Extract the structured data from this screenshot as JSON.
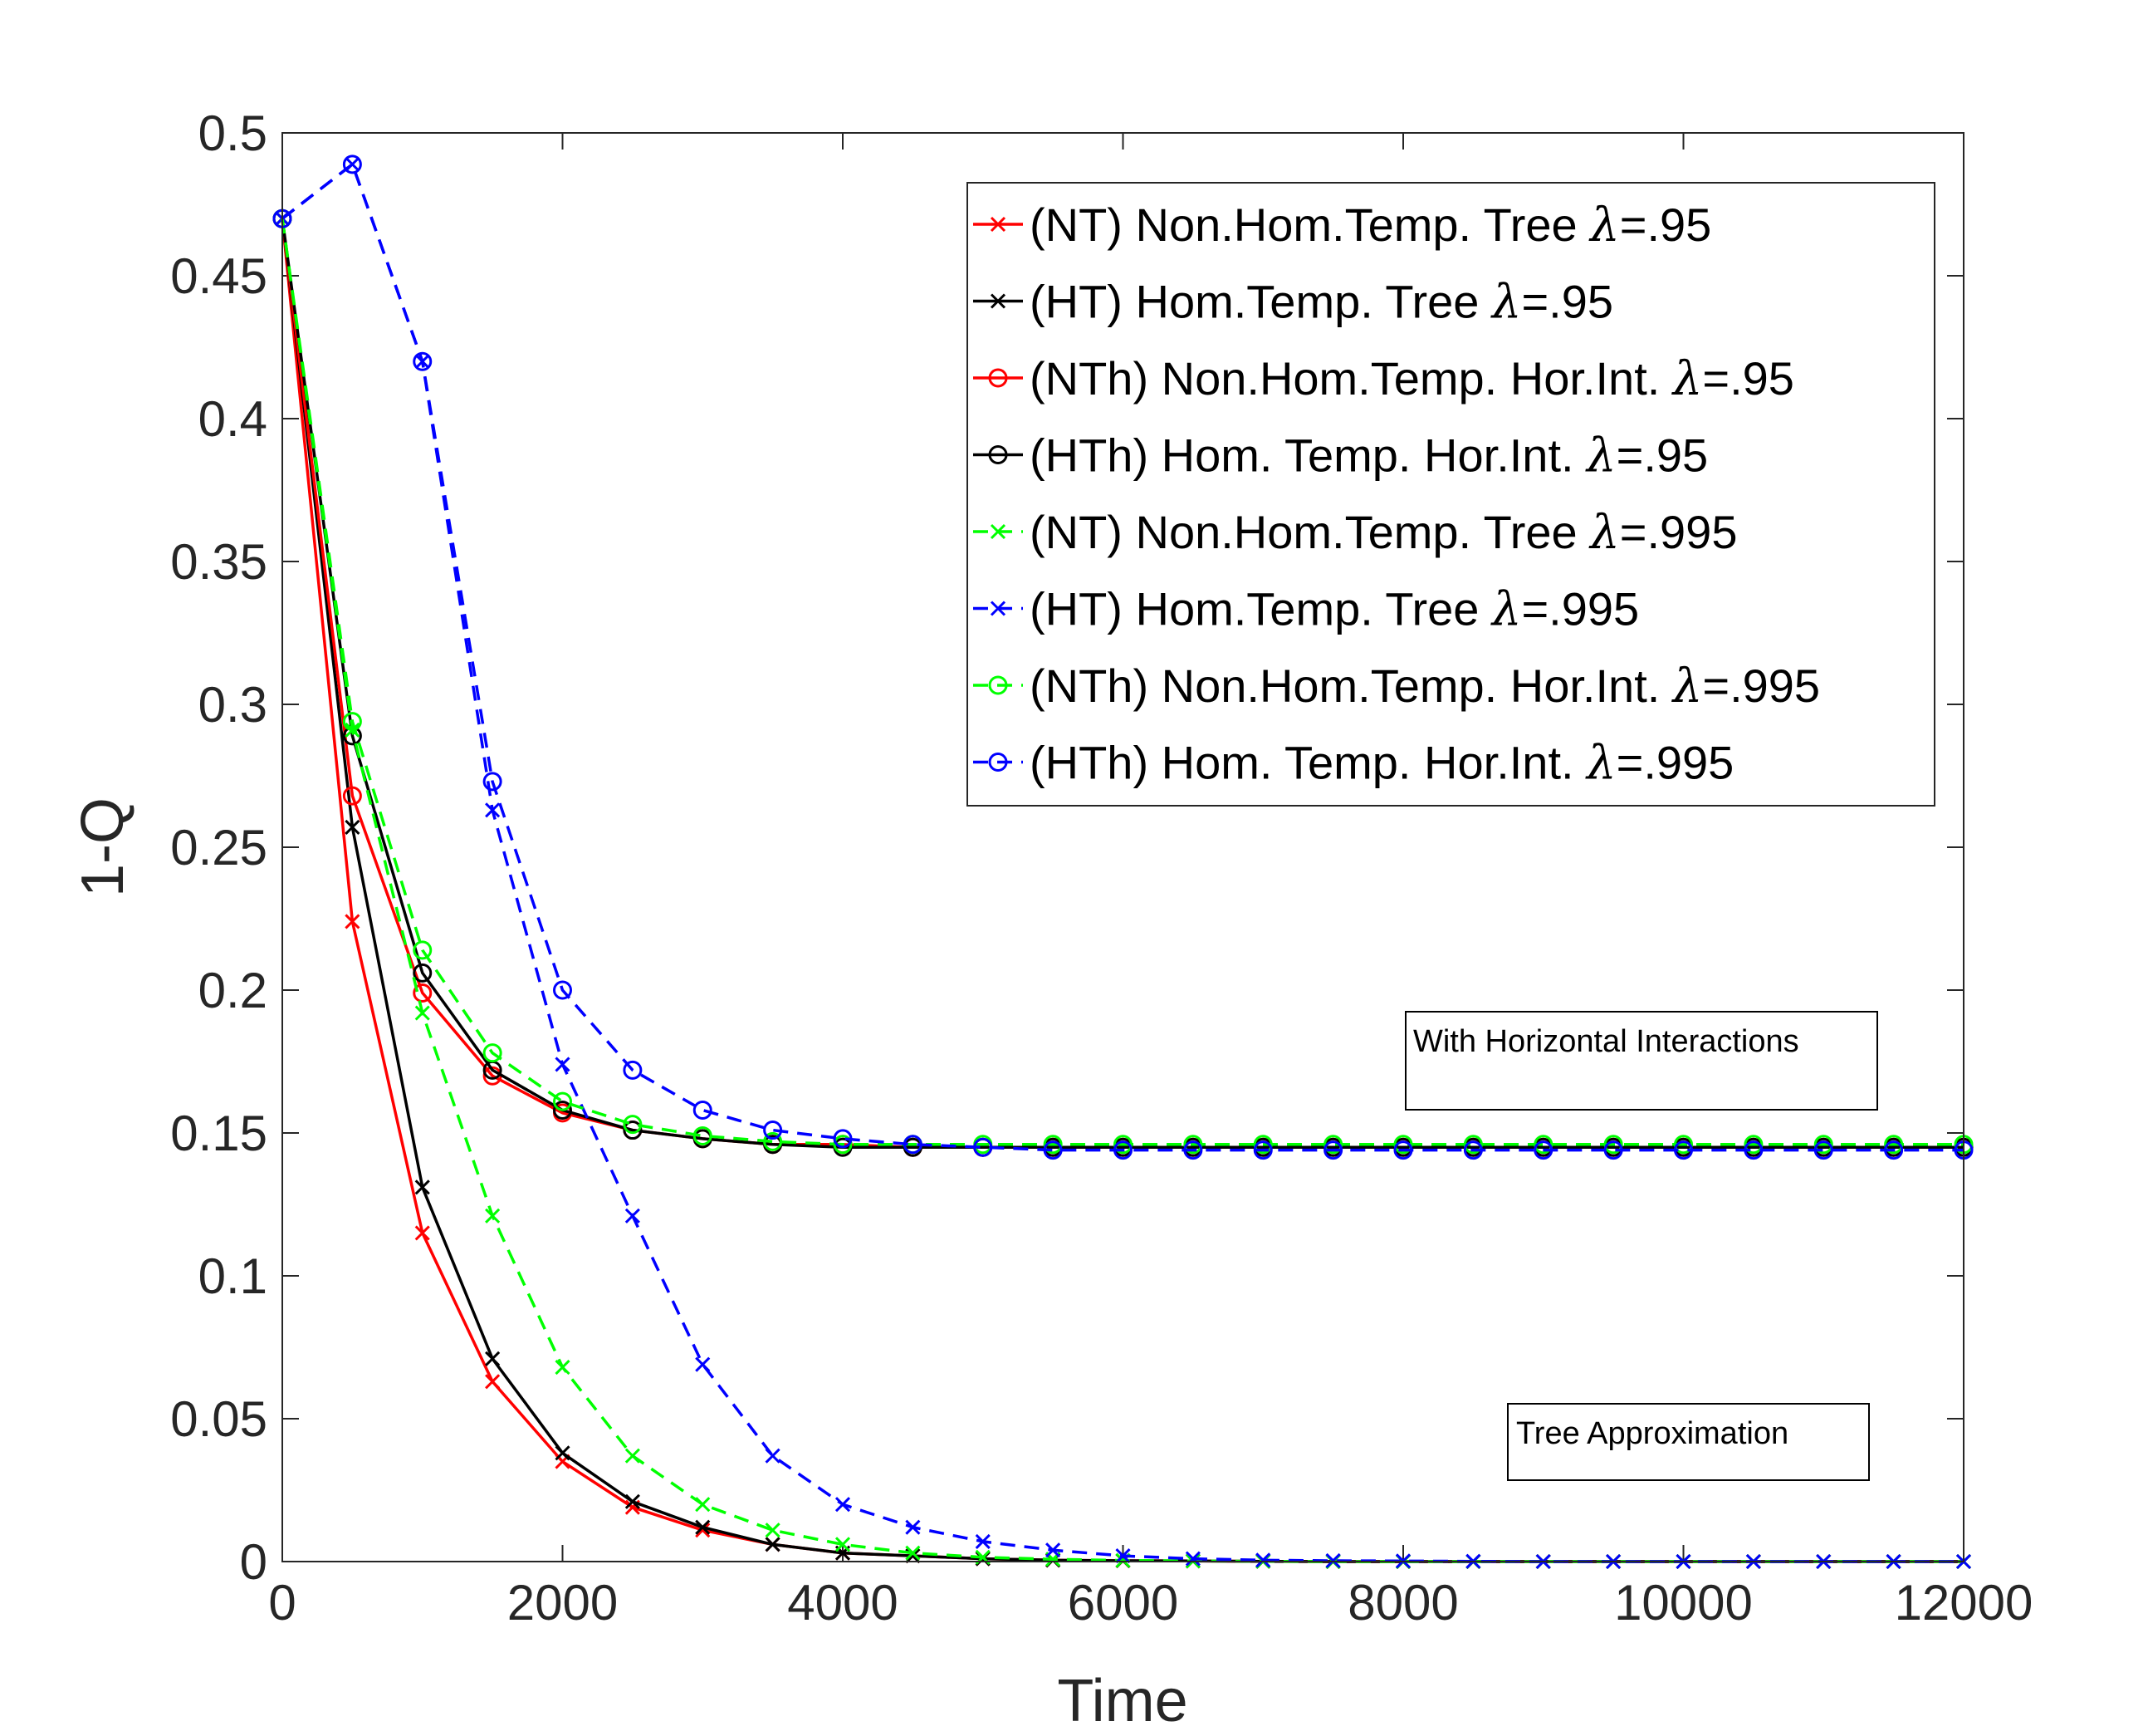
{
  "chart_data": {
    "type": "line",
    "title": "",
    "xlabel": "Time",
    "ylabel": "1-Q",
    "xlim": [
      0,
      12000
    ],
    "ylim": [
      0,
      0.5
    ],
    "xticks": [
      0,
      2000,
      4000,
      6000,
      8000,
      10000,
      12000
    ],
    "xtick_labels": [
      "0",
      "2000",
      "4000",
      "6000",
      "8000",
      "10000",
      "12000"
    ],
    "yticks": [
      0,
      0.05,
      0.1,
      0.15,
      0.2,
      0.25,
      0.3,
      0.35,
      0.4,
      0.45,
      0.5
    ],
    "ytick_labels": [
      "0",
      "0.05",
      "0.1",
      "0.15",
      "0.2",
      "0.25",
      "0.3",
      "0.35",
      "0.4",
      "0.45",
      "0.5"
    ],
    "grid": false,
    "legend_position": "top-right",
    "x": [
      0,
      500,
      1000,
      1500,
      2000,
      2500,
      3000,
      3500,
      4000,
      4500,
      5000,
      5500,
      6000,
      6500,
      7000,
      7500,
      8000,
      8500,
      9000,
      9500,
      10000,
      10500,
      11000,
      11500,
      12000
    ],
    "series": [
      {
        "name": "(NT) Non.Hom.Temp. Tree λ=.95",
        "legend_text": "(NT) Non.Hom.Temp. Tree ",
        "legend_lambda": "λ",
        "legend_value": "=.95",
        "color": "#ff0000",
        "marker": "x",
        "dashed": false,
        "values": [
          0.47,
          0.224,
          0.115,
          0.063,
          0.035,
          0.019,
          0.011,
          0.006,
          0.003,
          0.002,
          0.001,
          0.0005,
          0.0003,
          0.0002,
          0.0001,
          0,
          0,
          0,
          0,
          0,
          0,
          0,
          0,
          0,
          0
        ]
      },
      {
        "name": "(HT) Hom.Temp. Tree λ=.95",
        "legend_text": "(HT) Hom.Temp. Tree ",
        "legend_lambda": "λ",
        "legend_value": "=.95",
        "color": "#000000",
        "marker": "x",
        "dashed": false,
        "values": [
          0.47,
          0.257,
          0.131,
          0.071,
          0.038,
          0.021,
          0.012,
          0.006,
          0.003,
          0.002,
          0.001,
          0.0005,
          0.0003,
          0.0002,
          0.0001,
          0,
          0,
          0,
          0,
          0,
          0,
          0,
          0,
          0,
          0
        ]
      },
      {
        "name": "(NTh) Non.Hom.Temp. Hor.Int. λ=.95",
        "legend_text": "(NTh) Non.Hom.Temp. Hor.Int. ",
        "legend_lambda": "λ",
        "legend_value": "=.95",
        "color": "#ff0000",
        "marker": "o",
        "dashed": false,
        "values": [
          0.47,
          0.268,
          0.199,
          0.17,
          0.157,
          0.151,
          0.148,
          0.146,
          0.146,
          0.145,
          0.145,
          0.145,
          0.145,
          0.145,
          0.145,
          0.145,
          0.145,
          0.145,
          0.145,
          0.145,
          0.145,
          0.145,
          0.145,
          0.145,
          0.145
        ]
      },
      {
        "name": "(HTh) Hom. Temp. Hor.Int. λ=.95",
        "legend_text": "(HTh) Hom. Temp. Hor.Int. ",
        "legend_lambda": "λ",
        "legend_value": "=.95",
        "color": "#000000",
        "marker": "o",
        "dashed": false,
        "values": [
          0.47,
          0.289,
          0.206,
          0.172,
          0.158,
          0.151,
          0.148,
          0.146,
          0.145,
          0.145,
          0.145,
          0.145,
          0.145,
          0.145,
          0.145,
          0.145,
          0.145,
          0.145,
          0.145,
          0.145,
          0.145,
          0.145,
          0.145,
          0.145,
          0.145
        ]
      },
      {
        "name": "(NT) Non.Hom.Temp. Tree λ=.995",
        "legend_text": "(NT) Non.Hom.Temp. Tree ",
        "legend_lambda": "λ",
        "legend_value": "=.995",
        "color": "#00ff00",
        "marker": "x",
        "dashed": true,
        "values": [
          0.47,
          0.291,
          0.192,
          0.121,
          0.068,
          0.037,
          0.02,
          0.011,
          0.006,
          0.003,
          0.0015,
          0.0008,
          0.0004,
          0.0002,
          0.0001,
          0,
          0,
          0,
          0,
          0,
          0,
          0,
          0,
          0,
          0
        ]
      },
      {
        "name": "(HT) Hom.Temp. Tree λ=.995",
        "legend_text": "(HT) Hom.Temp. Tree ",
        "legend_lambda": "λ",
        "legend_value": "=.995",
        "color": "#0000ff",
        "marker": "x",
        "dashed": true,
        "values": [
          0.47,
          0.489,
          0.42,
          0.263,
          0.174,
          0.121,
          0.069,
          0.037,
          0.02,
          0.012,
          0.007,
          0.004,
          0.002,
          0.001,
          0.0005,
          0.0003,
          0.0002,
          0.0001,
          0,
          0,
          0,
          0,
          0,
          0,
          0
        ]
      },
      {
        "name": "(NTh) Non.Hom.Temp. Hor.Int. λ=.995",
        "legend_text": "(NTh) Non.Hom.Temp. Hor.Int. ",
        "legend_lambda": "λ",
        "legend_value": "=.995",
        "color": "#00ff00",
        "marker": "o",
        "dashed": true,
        "values": [
          0.47,
          0.294,
          0.214,
          0.178,
          0.161,
          0.153,
          0.149,
          0.147,
          0.146,
          0.146,
          0.146,
          0.146,
          0.146,
          0.146,
          0.146,
          0.146,
          0.146,
          0.146,
          0.146,
          0.146,
          0.146,
          0.146,
          0.146,
          0.146,
          0.146
        ]
      },
      {
        "name": "(HTh) Hom. Temp. Hor.Int. λ=.995",
        "legend_text": "(HTh) Hom. Temp. Hor.Int. ",
        "legend_lambda": "λ",
        "legend_value": "=.995",
        "color": "#0000ff",
        "marker": "o",
        "dashed": true,
        "values": [
          0.47,
          0.489,
          0.42,
          0.273,
          0.2,
          0.172,
          0.158,
          0.151,
          0.148,
          0.146,
          0.145,
          0.144,
          0.144,
          0.144,
          0.144,
          0.144,
          0.144,
          0.144,
          0.144,
          0.144,
          0.144,
          0.144,
          0.144,
          0.144,
          0.144
        ]
      }
    ],
    "annotations": [
      {
        "id": "horizontal",
        "text": "With Horizontal Interactions"
      },
      {
        "id": "tree",
        "text": "Tree Approximation"
      }
    ]
  }
}
